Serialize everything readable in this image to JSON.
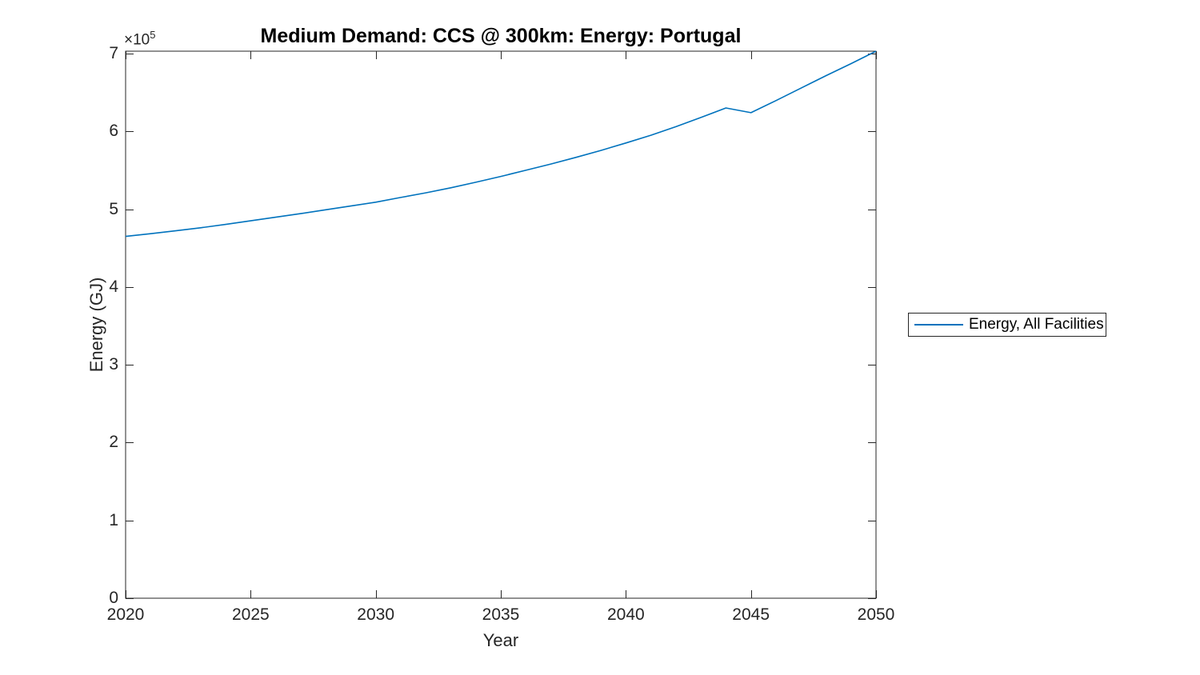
{
  "chart_data": {
    "type": "line",
    "title": "Medium Demand: CCS @ 300km: Energy: Portugal",
    "xlabel": "Year",
    "ylabel": "Energy (GJ)",
    "multiplier_base": "×10",
    "multiplier_exp": "5",
    "xlim": [
      2020,
      2050
    ],
    "ylim": [
      0,
      703000
    ],
    "grid": false,
    "legend_position": "outside-right",
    "axis_color": "#262626",
    "background_color": "#ffffff",
    "xticks": [
      2020,
      2025,
      2030,
      2035,
      2040,
      2045,
      2050
    ],
    "yticks": [
      {
        "value": 0,
        "label": "0"
      },
      {
        "value": 100000,
        "label": "1"
      },
      {
        "value": 200000,
        "label": "2"
      },
      {
        "value": 300000,
        "label": "3"
      },
      {
        "value": 400000,
        "label": "4"
      },
      {
        "value": 500000,
        "label": "5"
      },
      {
        "value": 600000,
        "label": "6"
      },
      {
        "value": 700000,
        "label": "7"
      }
    ],
    "x": [
      2020,
      2021,
      2022,
      2023,
      2024,
      2025,
      2026,
      2027,
      2028,
      2029,
      2030,
      2031,
      2032,
      2033,
      2034,
      2035,
      2036,
      2037,
      2038,
      2039,
      2040,
      2041,
      2042,
      2043,
      2044,
      2045,
      2046,
      2047,
      2048,
      2049,
      2050
    ],
    "series": [
      {
        "name": "Energy, All Facilities",
        "color": "#0072BD",
        "values": [
          465000,
          468500,
          472200,
          476100,
          480400,
          485000,
          489600,
          494300,
          499200,
          504000,
          509000,
          515000,
          521000,
          527500,
          534500,
          542000,
          550000,
          558000,
          566500,
          575500,
          585000,
          595000,
          606000,
          617800,
          630000,
          624000,
          639500,
          655500,
          671500,
          687000,
          703000
        ]
      }
    ]
  }
}
